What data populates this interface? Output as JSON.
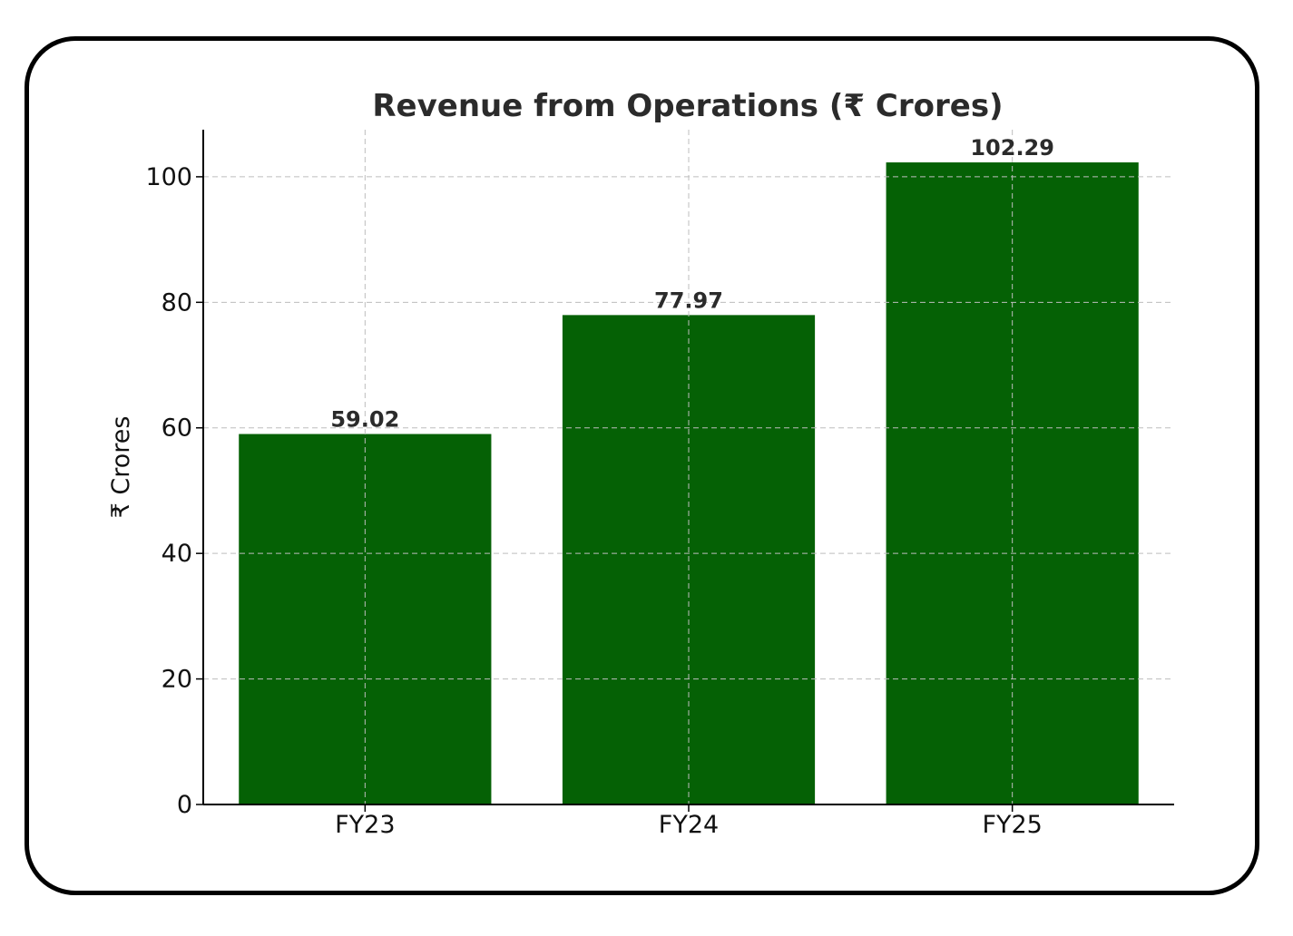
{
  "chart_data": {
    "type": "bar",
    "title": "Revenue from Operations (₹ Crores)",
    "xlabel": "",
    "ylabel": "₹ Crores",
    "categories": [
      "FY23",
      "FY24",
      "FY25"
    ],
    "values": [
      59.02,
      77.97,
      102.29
    ],
    "data_labels": [
      "59.02",
      "77.97",
      "102.29"
    ],
    "ylim": [
      0,
      107.5
    ],
    "yticks": [
      0,
      20,
      40,
      60,
      80,
      100
    ],
    "grid": true,
    "legend": "none",
    "bar_color": "#056105"
  }
}
